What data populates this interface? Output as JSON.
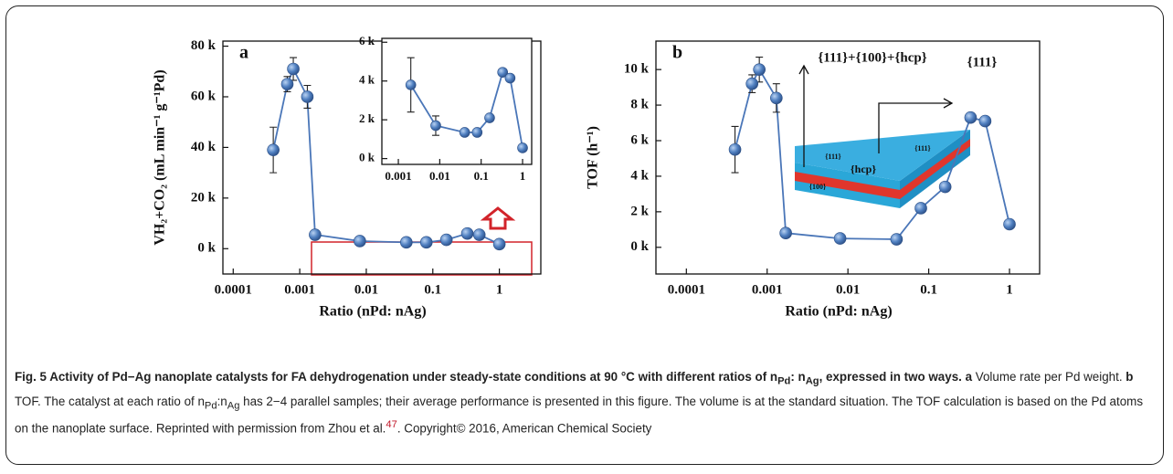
{
  "chart_data": [
    {
      "type": "line",
      "panel_label": "a",
      "y_label": "VH₂+CO₂ (mL min⁻¹ g⁻¹Pd)",
      "x_label": "Ratio (nPd: nAg)",
      "log_x": true,
      "color": "#4a76b8",
      "x": [
        0.0004,
        0.00065,
        0.0008,
        0.0013,
        0.0017,
        0.008,
        0.04,
        0.08,
        0.16,
        0.33,
        0.5,
        1
      ],
      "values": [
        39000,
        65000,
        71000,
        60000,
        5500,
        3000,
        2500,
        2500,
        3500,
        6000,
        5500,
        1800
      ],
      "errors": [
        9000,
        3000,
        4500,
        4500,
        null,
        null,
        null,
        null,
        null,
        null,
        null,
        null
      ],
      "xlim": [
        7e-05,
        4.2
      ],
      "ylim": [
        -10000,
        82000
      ],
      "xticks": [
        0.0001,
        0.001,
        0.01,
        0.1,
        1
      ],
      "yticks": [
        {
          "value": 0,
          "label": "0 k"
        },
        {
          "value": 20000,
          "label": "20 k"
        },
        {
          "value": 40000,
          "label": "40 k"
        },
        {
          "value": 60000,
          "label": "60 k"
        },
        {
          "value": 80000,
          "label": "80 k"
        }
      ]
    },
    {
      "type": "line",
      "inset": true,
      "log_x": true,
      "color": "#4a76b8",
      "x": [
        0.002,
        0.008,
        0.04,
        0.08,
        0.16,
        0.33,
        0.5,
        1
      ],
      "values": [
        3800,
        1700,
        1350,
        1350,
        2100,
        4450,
        4150,
        550
      ],
      "errors": [
        1400,
        500,
        null,
        null,
        null,
        null,
        null,
        null
      ],
      "xlim": [
        0.0004,
        1.66
      ],
      "ylim": [
        -300,
        6200
      ],
      "xticks": [
        0.001,
        0.01,
        0.1,
        1
      ],
      "yticks": [
        {
          "value": 0,
          "label": "0 k"
        },
        {
          "value": 2000,
          "label": "2 k"
        },
        {
          "value": 4000,
          "label": "4 k"
        },
        {
          "value": 6000,
          "label": "6 k"
        }
      ]
    },
    {
      "type": "line",
      "panel_label": "b",
      "y_label": "TOF (h⁻¹)",
      "x_label": "Ratio (nPd: nAg)",
      "log_x": true,
      "color": "#4a76b8",
      "x": [
        0.0004,
        0.00065,
        0.0008,
        0.0013,
        0.0017,
        0.008,
        0.04,
        0.08,
        0.16,
        0.33,
        0.5,
        1
      ],
      "values": [
        5500,
        9200,
        10000,
        8400,
        800,
        500,
        450,
        2200,
        3400,
        7300,
        7100,
        1300
      ],
      "errors": [
        1300,
        500,
        700,
        800,
        null,
        null,
        null,
        null,
        null,
        null,
        null,
        null
      ],
      "xlim": [
        4.2e-05,
        2.36
      ],
      "ylim": [
        -1500,
        11600
      ],
      "xticks": [
        0.0001,
        0.001,
        0.01,
        0.1,
        1
      ],
      "yticks": [
        {
          "value": 0,
          "label": "0 k"
        },
        {
          "value": 2000,
          "label": "2 k"
        },
        {
          "value": 4000,
          "label": "4 k"
        },
        {
          "value": 6000,
          "label": "6 k"
        },
        {
          "value": 8000,
          "label": "8 k"
        },
        {
          "value": 10000,
          "label": "10 k"
        }
      ],
      "annotations": [
        {
          "text": "{111}+{100}+{hcp}",
          "color": "#e07b1f"
        },
        {
          "text": "{111}",
          "color": "#1e9e3a"
        },
        {
          "text": "{111}",
          "color": "#111111"
        },
        {
          "text": "{111}",
          "color": "#111111"
        },
        {
          "text": "{hcp}",
          "color": "#f2e400"
        },
        {
          "text": "{100}",
          "color": "#111111"
        }
      ]
    }
  ],
  "caption": [
    "Fig. 5 Activity of Pd−Ag nanoplate catalysts for FA dehydrogenation under steady-state conditions at 90 °C with different ratios of n",
    "Pd",
    ": n",
    "Ag",
    ", expressed in two ways.",
    " a",
    " Volume rate per Pd weight. ",
    "b",
    " TOF. The catalyst at each ratio of n",
    "Pd",
    ":n",
    "Ag",
    " has 2−4 parallel samples; their average performance is presented in this figure. The volume is at the standard situation. The TOF calculation is based on the Pd atoms on the nanoplate surface. Reprinted with permission from Zhou et al.",
    "47",
    ". Copyright© 2016, American Chemical Society"
  ]
}
